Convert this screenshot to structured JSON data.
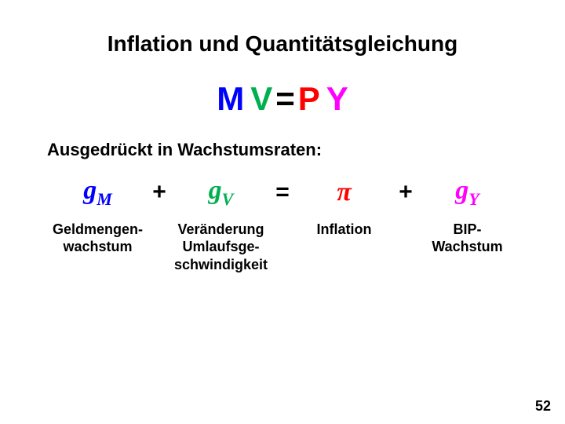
{
  "title": "Inflation und Quantitätsgleichung",
  "main_equation": {
    "M": {
      "text": "M",
      "color": "#0000ff"
    },
    "space1": {
      "text": " ",
      "color": "#000000"
    },
    "V": {
      "text": "V",
      "color": "#00b050"
    },
    "eq": {
      "text": " = ",
      "color": "#000000"
    },
    "P": {
      "text": "P",
      "color": "#ff0000"
    },
    "space2": {
      "text": " ",
      "color": "#000000"
    },
    "Y": {
      "text": "Y",
      "color": "#ff00ff"
    }
  },
  "subtitle": "Ausgedrückt in Wachstumsraten:",
  "growth": {
    "gM": {
      "base": "g",
      "sub": "M",
      "color": "#0000ff"
    },
    "plus1": "+",
    "gV": {
      "base": "g",
      "sub": "V",
      "color": "#00b050"
    },
    "equals": "=",
    "pi": {
      "text": "π",
      "color": "#ff0000"
    },
    "plus2": "+",
    "gY": {
      "base": "g",
      "sub": "Y",
      "color": "#ff00ff"
    }
  },
  "labels": {
    "gM": "Geldmengen-\nwachstum",
    "gV": "Veränderung\nUmlaufsge-\nschwindigkeit",
    "pi": "Inflation",
    "gY": "BIP-\nWachstum"
  },
  "page_number": "52",
  "style": {
    "background_color": "#ffffff",
    "title_fontsize": 28,
    "main_eq_fontsize": 42,
    "subtitle_fontsize": 22,
    "growth_fontsize": 34,
    "label_fontsize": 18,
    "text_color": "#000000"
  }
}
